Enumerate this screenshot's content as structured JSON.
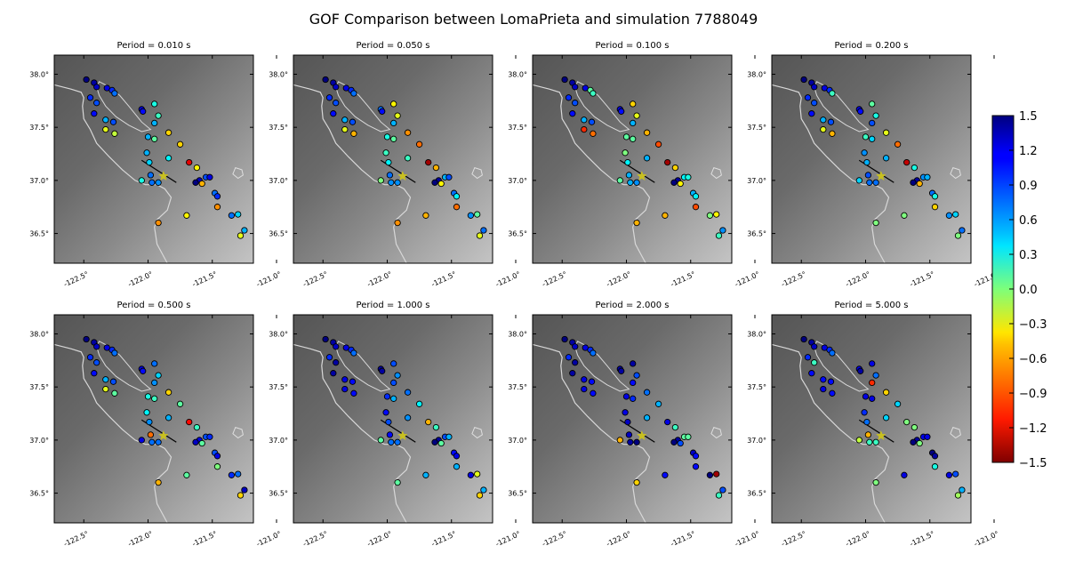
{
  "title": "GOF Comparison between LomaPrieta and simulation 7788049",
  "panels": [
    {
      "title": "Period = 0.010 s"
    },
    {
      "title": "Period = 0.050 s"
    },
    {
      "title": "Period = 0.100 s"
    },
    {
      "title": "Period = 0.200 s"
    },
    {
      "title": "Period = 0.500 s"
    },
    {
      "title": "Period = 1.000 s"
    },
    {
      "title": "Period = 2.000 s"
    },
    {
      "title": "Period = 5.000 s"
    }
  ],
  "map": {
    "lon_range": [
      -122.73,
      -121.18
    ],
    "lat_range": [
      36.22,
      38.18
    ],
    "x_ticks": [
      -122.5,
      -122.0,
      -121.5,
      -121.0
    ],
    "x_tick_labels": [
      "-122.5°",
      "-122.0°",
      "-121.5°",
      "-121.0°"
    ],
    "y_ticks": [
      38.0,
      37.5,
      37.0,
      36.5
    ],
    "y_tick_labels": [
      "38.0°",
      "37.5°",
      "37.0°",
      "36.5°"
    ],
    "epicenter": {
      "lon": -121.88,
      "lat": 37.04,
      "color": "#c8c020"
    },
    "fault": {
      "lon1": -122.05,
      "lat1": 37.19,
      "lon2": -121.78,
      "lat2": 36.98
    }
  },
  "colorbar": {
    "range": [
      -1.5,
      1.5
    ],
    "ticks": [
      1.5,
      1.2,
      0.9,
      0.6,
      0.3,
      0.0,
      -0.3,
      -0.6,
      -0.9,
      -1.2,
      -1.5
    ],
    "tick_labels": [
      "1.5",
      "1.2",
      "0.9",
      "0.6",
      "0.3",
      "0.0",
      "−0.3",
      "−0.6",
      "−0.9",
      "−1.2",
      "−1.5"
    ],
    "colormap": "jet_reversed"
  },
  "chart_data": {
    "type": "scatter",
    "x_label": "",
    "y_label": "",
    "stations": [
      {
        "lon": -122.48,
        "lat": 37.95
      },
      {
        "lon": -122.42,
        "lat": 37.92
      },
      {
        "lon": -122.4,
        "lat": 37.88
      },
      {
        "lon": -122.32,
        "lat": 37.87
      },
      {
        "lon": -122.28,
        "lat": 37.85
      },
      {
        "lon": -122.26,
        "lat": 37.82
      },
      {
        "lon": -122.45,
        "lat": 37.78
      },
      {
        "lon": -122.4,
        "lat": 37.73
      },
      {
        "lon": -122.42,
        "lat": 37.63
      },
      {
        "lon": -122.33,
        "lat": 37.57
      },
      {
        "lon": -122.27,
        "lat": 37.55
      },
      {
        "lon": -122.33,
        "lat": 37.48
      },
      {
        "lon": -122.26,
        "lat": 37.44
      },
      {
        "lon": -122.05,
        "lat": 37.67
      },
      {
        "lon": -122.04,
        "lat": 37.65
      },
      {
        "lon": -121.95,
        "lat": 37.72
      },
      {
        "lon": -121.92,
        "lat": 37.61
      },
      {
        "lon": -121.95,
        "lat": 37.54
      },
      {
        "lon": -122.0,
        "lat": 37.41
      },
      {
        "lon": -121.95,
        "lat": 37.39
      },
      {
        "lon": -121.84,
        "lat": 37.45
      },
      {
        "lon": -121.75,
        "lat": 37.34
      },
      {
        "lon": -122.01,
        "lat": 37.26
      },
      {
        "lon": -121.84,
        "lat": 37.21
      },
      {
        "lon": -121.68,
        "lat": 37.17
      },
      {
        "lon": -121.62,
        "lat": 37.12
      },
      {
        "lon": -121.99,
        "lat": 37.17
      },
      {
        "lon": -121.55,
        "lat": 37.03
      },
      {
        "lon": -121.6,
        "lat": 37.0
      },
      {
        "lon": -121.63,
        "lat": 36.98
      },
      {
        "lon": -121.58,
        "lat": 36.97
      },
      {
        "lon": -121.52,
        "lat": 37.03
      },
      {
        "lon": -121.48,
        "lat": 36.88
      },
      {
        "lon": -121.46,
        "lat": 36.85
      },
      {
        "lon": -121.46,
        "lat": 36.75
      },
      {
        "lon": -121.7,
        "lat": 36.67
      },
      {
        "lon": -121.35,
        "lat": 36.67
      },
      {
        "lon": -121.3,
        "lat": 36.68
      },
      {
        "lon": -121.25,
        "lat": 36.53
      },
      {
        "lon": -121.28,
        "lat": 36.48
      },
      {
        "lon": -122.05,
        "lat": 37.0
      },
      {
        "lon": -121.98,
        "lat": 37.05
      },
      {
        "lon": -121.97,
        "lat": 36.98
      },
      {
        "lon": -121.92,
        "lat": 36.98
      },
      {
        "lon": -121.92,
        "lat": 36.6
      }
    ],
    "gof_values_by_period": {
      "0.010": [
        1.5,
        1.4,
        1.3,
        1.2,
        1.0,
        0.8,
        1.0,
        0.9,
        1.1,
        0.6,
        0.9,
        -0.3,
        -0.2,
        1.2,
        1.1,
        0.3,
        0.2,
        0.6,
        0.6,
        0.1,
        -0.5,
        -0.5,
        0.6,
        0.4,
        -1.2,
        -0.4,
        0.5,
        0.9,
        1.3,
        1.5,
        -0.6,
        1.2,
        0.8,
        1.0,
        -0.7,
        -0.4,
        0.8,
        0.5,
        0.6,
        -0.3,
        0.3,
        0.8,
        0.8,
        0.7,
        -0.7
      ],
      "0.050": [
        1.5,
        1.4,
        1.3,
        1.2,
        1.0,
        0.8,
        1.0,
        0.9,
        1.1,
        0.6,
        0.9,
        -0.3,
        -0.6,
        0.8,
        1.1,
        -0.4,
        -0.3,
        0.6,
        0.3,
        0.1,
        -0.7,
        -0.8,
        0.2,
        0.2,
        -1.4,
        -0.6,
        0.4,
        0.6,
        1.4,
        1.5,
        -0.4,
        0.9,
        0.8,
        0.4,
        -0.8,
        -0.6,
        0.7,
        0.1,
        0.8,
        -0.3,
        0.0,
        0.8,
        0.7,
        0.7,
        -0.7
      ],
      "0.100": [
        1.5,
        1.4,
        1.3,
        1.2,
        0.1,
        0.2,
        1.0,
        0.9,
        1.1,
        0.6,
        0.9,
        -1.0,
        -0.8,
        1.2,
        1.1,
        -0.5,
        -0.3,
        0.6,
        0.1,
        0.1,
        -0.6,
        -0.9,
        0.0,
        0.6,
        -1.4,
        -0.5,
        0.4,
        0.4,
        1.4,
        1.5,
        -0.4,
        0.3,
        0.6,
        0.4,
        -0.9,
        -0.6,
        0.0,
        -0.4,
        0.7,
        0.2,
        0.1,
        0.6,
        0.6,
        0.7,
        -0.6
      ],
      "0.200": [
        1.5,
        1.4,
        1.3,
        1.2,
        1.0,
        0.2,
        1.0,
        0.9,
        1.1,
        0.6,
        0.9,
        -0.3,
        -0.6,
        1.2,
        1.1,
        0.1,
        0.3,
        0.9,
        0.2,
        0.5,
        -0.3,
        -0.8,
        0.7,
        0.6,
        -1.3,
        0.3,
        0.6,
        0.7,
        1.4,
        1.5,
        -0.6,
        0.6,
        0.8,
        0.3,
        -0.5,
        0.0,
        0.7,
        0.5,
        0.8,
        0.0,
        0.5,
        0.9,
        0.8,
        0.8,
        0.0
      ],
      "0.500": [
        1.5,
        1.4,
        1.3,
        1.2,
        1.0,
        0.8,
        1.0,
        0.9,
        1.1,
        0.6,
        0.9,
        -0.3,
        0.1,
        1.2,
        1.1,
        0.8,
        0.5,
        0.7,
        0.3,
        0.2,
        -0.5,
        0.1,
        0.4,
        0.6,
        -1.1,
        0.2,
        0.7,
        0.9,
        1.2,
        1.3,
        0.1,
        1.0,
        0.9,
        1.2,
        0.0,
        0.1,
        1.0,
        0.8,
        1.3,
        -0.5,
        1.2,
        -0.8,
        0.8,
        0.8,
        -0.6
      ],
      "1.000": [
        1.5,
        1.4,
        1.3,
        1.2,
        1.0,
        0.8,
        1.0,
        1.4,
        1.4,
        1.2,
        1.1,
        1.2,
        1.1,
        1.4,
        1.4,
        0.9,
        0.7,
        0.9,
        1.0,
        0.6,
        0.8,
        0.4,
        1.1,
        0.7,
        -0.6,
        0.2,
        0.9,
        0.9,
        1.4,
        1.5,
        0.1,
        0.6,
        1.1,
        1.2,
        0.6,
        0.6,
        1.2,
        -0.3,
        0.6,
        -0.5,
        0.1,
        1.1,
        0.8,
        0.8,
        0.1
      ],
      "2.000": [
        1.5,
        1.4,
        1.3,
        1.2,
        1.0,
        0.8,
        1.0,
        1.4,
        1.4,
        1.2,
        1.1,
        1.2,
        1.1,
        1.4,
        1.4,
        1.4,
        0.9,
        1.1,
        1.2,
        1.0,
        0.8,
        0.6,
        1.2,
        0.6,
        1.2,
        0.2,
        1.3,
        0.1,
        1.4,
        1.5,
        0.9,
        0.1,
        1.3,
        1.1,
        1.1,
        1.1,
        1.5,
        -1.4,
        0.9,
        0.2,
        -0.6,
        1.3,
        1.4,
        1.5,
        -0.5
      ],
      "5.000": [
        1.5,
        1.4,
        1.3,
        1.2,
        1.0,
        0.8,
        1.0,
        0.2,
        1.1,
        1.1,
        1.1,
        1.2,
        1.1,
        1.2,
        1.4,
        1.2,
        0.8,
        -1.0,
        1.2,
        1.2,
        -0.5,
        0.5,
        1.0,
        0.5,
        0.0,
        0.0,
        0.8,
        1.2,
        1.4,
        1.5,
        0.0,
        1.2,
        1.5,
        1.4,
        0.3,
        1.2,
        1.2,
        0.9,
        0.6,
        -0.1,
        -0.2,
        -0.6,
        0.2,
        0.2,
        0.0
      ]
    },
    "period_order": [
      "0.010",
      "0.050",
      "0.100",
      "0.200",
      "0.500",
      "1.000",
      "2.000",
      "5.000"
    ]
  }
}
